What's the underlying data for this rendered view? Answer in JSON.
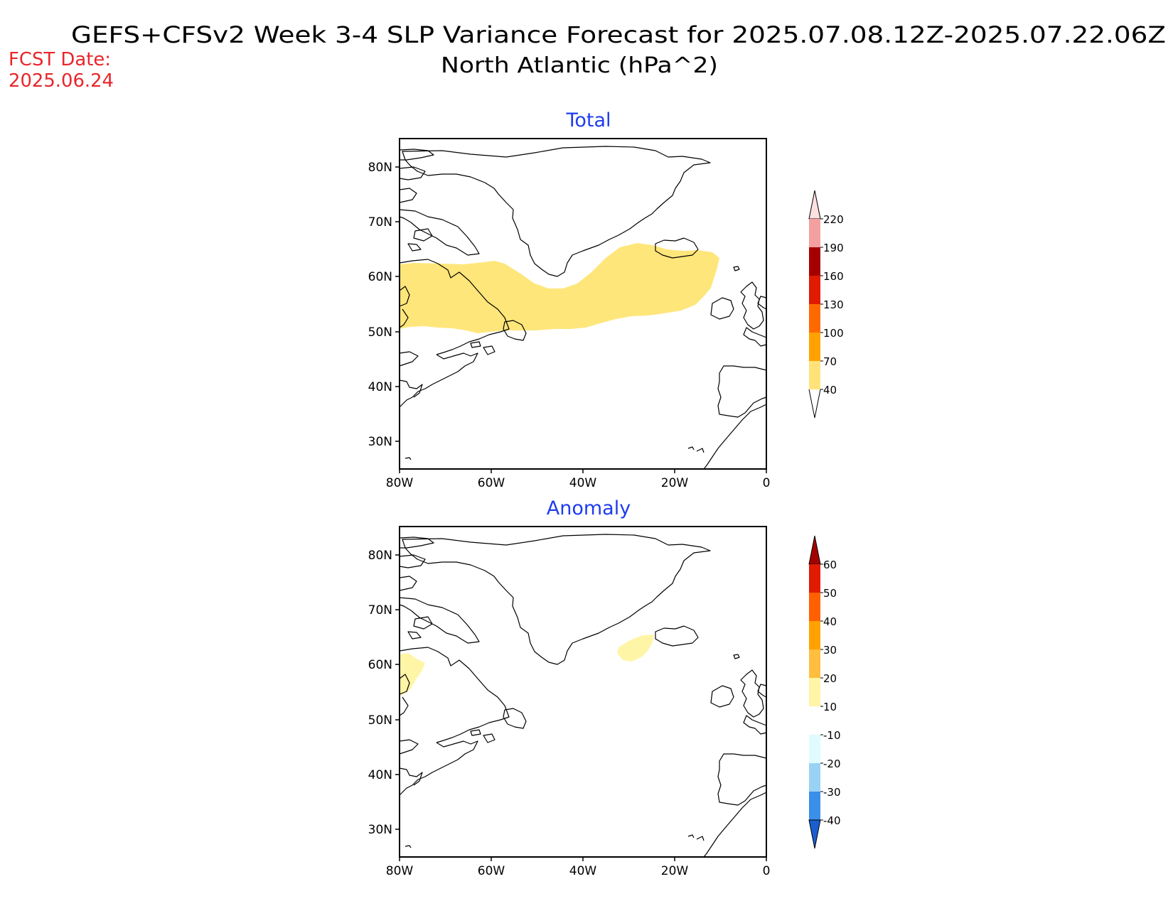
{
  "header": {
    "title_line1": "GEFS+CFSv2 Week 3-4 SLP Variance Forecast for 2025.07.08.12Z-2025.07.22.06Z",
    "title_line2": "North Atlantic (hPa^2)",
    "fcst_label": "FCST Date:",
    "fcst_date": "2025.06.24"
  },
  "panels": {
    "total": {
      "title": "Total",
      "lat_ticks": [
        "80N",
        "70N",
        "60N",
        "50N",
        "40N",
        "30N"
      ],
      "lon_ticks": [
        "80W",
        "60W",
        "40W",
        "20W",
        "0"
      ]
    },
    "anomaly": {
      "title": "Anomaly",
      "lat_ticks": [
        "80N",
        "70N",
        "60N",
        "50N",
        "40N",
        "30N"
      ],
      "lon_ticks": [
        "80W",
        "60W",
        "40W",
        "20W",
        "0"
      ]
    }
  },
  "colorbars": {
    "total": {
      "labels": [
        "220",
        "190",
        "160",
        "130",
        "100",
        "70",
        "40"
      ],
      "colors": {
        "above_220": "#fde0e0",
        "190_220": "#f4a0a0",
        "160_190": "#a50000",
        "130_160": "#e01b00",
        "100_130": "#ff6a00",
        "70_100": "#ffa200",
        "40_70": "#ffe37a",
        "below_40": "#ffffff"
      }
    },
    "anomaly": {
      "labels": [
        "60",
        "50",
        "40",
        "30",
        "20",
        "10",
        "-10",
        "-20",
        "-30",
        "-40"
      ],
      "colors": {
        "above_60": "#a50000",
        "50_60": "#e01b00",
        "40_50": "#ff6000",
        "30_40": "#ffa200",
        "20_30": "#ffbe3f",
        "10_20": "#fff5a6",
        "neg10_10": "#ffffff",
        "neg20_neg10": "#e0fbff",
        "neg30_neg20": "#9ad2f5",
        "neg40_neg30": "#3a8fe8",
        "below_neg40": "#1a5fd0"
      }
    }
  },
  "map": {
    "region": "North Atlantic",
    "lon_range": [
      -80,
      0
    ],
    "lat_range": [
      25,
      85
    ],
    "land_fill": "#ffffff",
    "coast_color": "#000000"
  }
}
